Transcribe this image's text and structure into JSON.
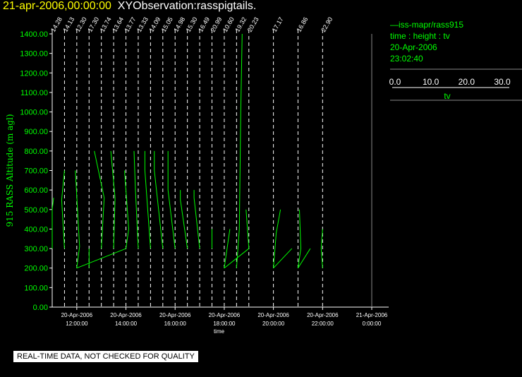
{
  "header": {
    "datetime": "21-apr-2006,00:00:00",
    "observation": "XYObservation:rasspigtails."
  },
  "legend": {
    "series_label": "iss-mapr/rass915",
    "axes_label": "time : height : tv",
    "date": "20-Apr-2006",
    "time": "23:02:40",
    "scale_ticks": [
      "0.0",
      "10.0",
      "20.0",
      "30.0"
    ],
    "scale_label": "tv",
    "colors": {
      "series": "#00ff00",
      "text": "#00ff00"
    }
  },
  "disclaimer": "REAL-TIME DATA, NOT CHECKED FOR QUALITY",
  "chart_data": {
    "type": "line",
    "title": "",
    "xlabel": "time",
    "ylabel": "915 RASS Altitude (m agl)",
    "x_range": [
      "2006-04-20T11:00:00",
      "2006-04-21T00:00:00"
    ],
    "ylim": [
      0,
      1400
    ],
    "y_ticks": [
      "0.00",
      "100.00",
      "200.00",
      "300.00",
      "400.00",
      "500.00",
      "600.00",
      "700.00",
      "800.00",
      "900.00",
      "1000.00",
      "1100.00",
      "1200.00",
      "1300.00",
      "1400.00"
    ],
    "x_ticks": [
      {
        "t": "2006-04-20T12:00:00",
        "date": "20-Apr-2006",
        "time": "12:00:00"
      },
      {
        "t": "2006-04-20T14:00:00",
        "date": "20-Apr-2006",
        "time": "14:00:00"
      },
      {
        "t": "2006-04-20T16:00:00",
        "date": "20-Apr-2006",
        "time": "16:00:00"
      },
      {
        "t": "2006-04-20T18:00:00",
        "date": "20-Apr-2006",
        "time": "18:00:00"
      },
      {
        "t": "2006-04-20T20:00:00",
        "date": "20-Apr-2006",
        "time": "20:00:00"
      },
      {
        "t": "2006-04-20T22:00:00",
        "date": "20-Apr-2006",
        "time": "22:00:00"
      },
      {
        "t": "2006-04-21T00:00:00",
        "date": "21-Apr-2006",
        "time": "0:00:00"
      }
    ],
    "profiles": [
      {
        "t": "2006-04-20T11:00:00",
        "label": "14.28",
        "pts": [
          [
            0.0,
            300
          ],
          [
            0.0,
            500
          ],
          [
            0.1,
            560
          ]
        ]
      },
      {
        "t": "2006-04-20T11:30:00",
        "label": "14.13",
        "pts": [
          [
            0.0,
            300
          ],
          [
            -0.2,
            550
          ],
          [
            0.0,
            700
          ]
        ]
      },
      {
        "t": "2006-04-20T12:00:00",
        "label": "12.30",
        "pts": [
          [
            0.0,
            200
          ],
          [
            0.2,
            310
          ],
          [
            -0.1,
            700
          ]
        ]
      },
      {
        "t": "2006-04-20T12:30:00",
        "label": "17.30",
        "pts": [
          [
            0.0,
            200
          ],
          [
            0.0,
            300
          ]
        ]
      },
      {
        "t": "2006-04-20T13:00:00",
        "label": "13.74",
        "pts": [
          [
            0.0,
            300
          ],
          [
            0.2,
            560
          ],
          [
            -0.5,
            800
          ]
        ]
      },
      {
        "t": "2006-04-20T13:30:00",
        "label": "13.64",
        "pts": [
          [
            0.0,
            300
          ],
          [
            0.1,
            560
          ],
          [
            -0.2,
            800
          ]
        ]
      },
      {
        "t": "2006-04-20T14:00:00",
        "label": "13.77",
        "pts": [
          [
            0.0,
            300
          ],
          [
            0.2,
            400
          ],
          [
            -0.1,
            700
          ]
        ]
      },
      {
        "t": "2006-04-20T14:30:00",
        "label": "13.33",
        "pts": [
          [
            0.0,
            300
          ],
          [
            -0.2,
            600
          ],
          [
            -0.3,
            800
          ]
        ]
      },
      {
        "t": "2006-04-20T15:00:00",
        "label": "14.09",
        "pts": [
          [
            0.0,
            300
          ],
          [
            -0.4,
            700
          ],
          [
            -0.4,
            800
          ]
        ]
      },
      {
        "t": "2006-04-20T15:30:00",
        "label": "15.05",
        "pts": [
          [
            0.0,
            300
          ],
          [
            -0.6,
            700
          ],
          [
            -0.6,
            800
          ]
        ]
      },
      {
        "t": "2006-04-20T16:00:00",
        "label": "14.98",
        "pts": [
          [
            0.0,
            300
          ],
          [
            -0.5,
            600
          ],
          [
            -0.5,
            800
          ]
        ]
      },
      {
        "t": "2006-04-20T16:30:00",
        "label": "15.30",
        "pts": [
          [
            0.0,
            300
          ],
          [
            -0.5,
            550
          ],
          [
            -0.5,
            600
          ]
        ]
      },
      {
        "t": "2006-04-20T17:00:00",
        "label": "16.49",
        "pts": [
          [
            0.0,
            300
          ],
          [
            -0.4,
            560
          ],
          [
            -0.4,
            600
          ]
        ]
      },
      {
        "t": "2006-04-20T17:30:00",
        "label": "20.99",
        "pts": [
          [
            0.0,
            300
          ],
          [
            0.0,
            400
          ]
        ]
      },
      {
        "t": "2006-04-20T18:00:00",
        "label": "10.60",
        "pts": [
          [
            0.0,
            200
          ],
          [
            0.2,
            300
          ],
          [
            0.4,
            400
          ]
        ]
      },
      {
        "t": "2006-04-20T18:30:00",
        "label": "19.32",
        "pts": [
          [
            0.0,
            200
          ],
          [
            0.2,
            400
          ],
          [
            0.3,
            1000
          ],
          [
            0.4,
            1400
          ]
        ]
      },
      {
        "t": "2006-04-20T19:00:00",
        "label": "20.23",
        "pts": [
          [
            0.0,
            300
          ],
          [
            -0.2,
            500
          ]
        ]
      },
      {
        "t": "2006-04-20T20:00:00",
        "label": "17.17",
        "pts": [
          [
            0.0,
            200
          ],
          [
            0.2,
            380
          ],
          [
            0.5,
            500
          ]
        ]
      },
      {
        "t": "2006-04-20T21:00:00",
        "label": "16.86",
        "pts": [
          [
            0.0,
            200
          ],
          [
            0.2,
            300
          ],
          [
            0.1,
            500
          ]
        ]
      },
      {
        "t": "2006-04-20T22:00:00",
        "label": "22.90",
        "pts": [
          [
            0.0,
            200
          ],
          [
            -0.1,
            300
          ],
          [
            0.0,
            400
          ]
        ]
      }
    ],
    "connectors": [
      {
        "from": [
          "2006-04-20T12:00:00",
          200
        ],
        "to": [
          "2006-04-20T14:00:00",
          300
        ]
      },
      {
        "from": [
          "2006-04-20T18:00:00",
          200
        ],
        "to": [
          "2006-04-20T19:00:00",
          300
        ]
      },
      {
        "from": [
          "2006-04-20T20:00:00",
          200
        ],
        "to": [
          "2006-04-20T20:45:00",
          300
        ]
      },
      {
        "from": [
          "2006-04-20T21:00:00",
          200
        ],
        "to": [
          "2006-04-20T21:30:00",
          300
        ]
      }
    ],
    "grid": false,
    "legend_placement": "right"
  }
}
